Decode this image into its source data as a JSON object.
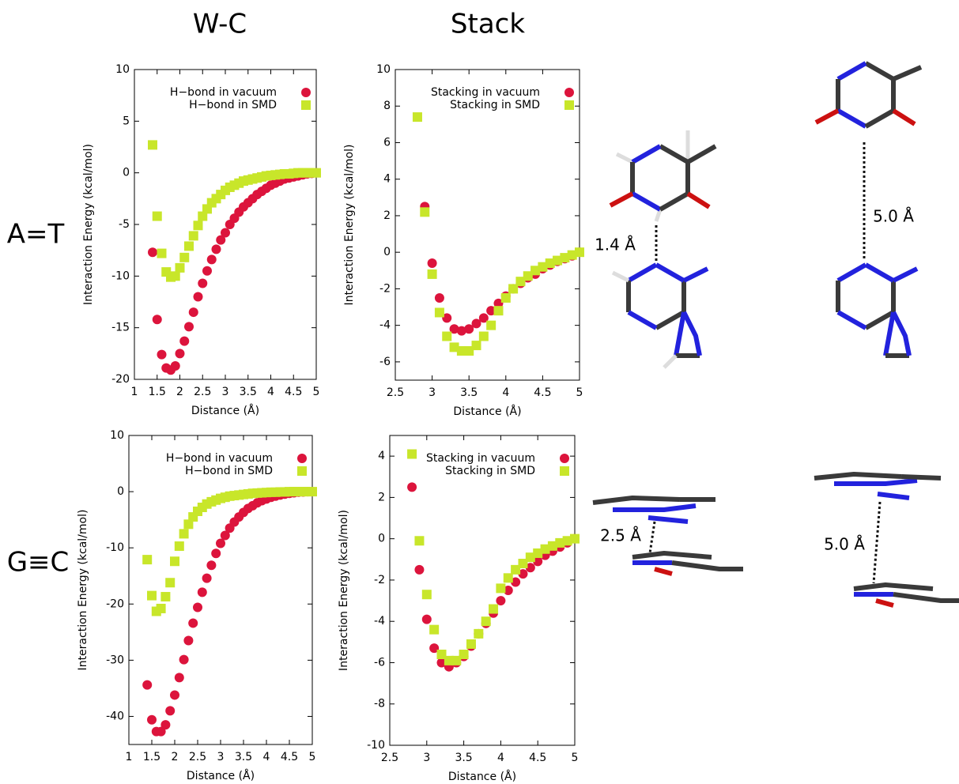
{
  "headers": [
    "W-C",
    "Stack"
  ],
  "row_labels": [
    "A=T",
    "G≡C"
  ],
  "annotations": [
    "1.4 Å",
    "5.0 Å",
    "2.5 Å",
    "5.0 Å"
  ],
  "chart_data": [
    {
      "type": "scatter",
      "x_label": "Distance (Å)",
      "y_label": "Interaction Energy (kcal/mol)",
      "x": [
        1.4,
        1.5,
        1.6,
        1.7,
        1.8,
        1.9,
        2.0,
        2.1,
        2.2,
        2.3,
        2.4,
        2.5,
        2.6,
        2.7,
        2.8,
        2.9,
        3.0,
        3.1,
        3.2,
        3.3,
        3.4,
        3.5,
        3.6,
        3.7,
        3.8,
        3.9,
        4.0,
        4.1,
        4.2,
        4.3,
        4.4,
        4.5,
        4.6,
        4.7,
        4.8,
        4.9,
        5.0
      ],
      "series": [
        {
          "name": "H−bond in vacuum",
          "color": "#dc143c",
          "marker": "circle",
          "values": [
            -7.7,
            -14.2,
            -17.6,
            -18.9,
            -19.1,
            -18.7,
            -17.5,
            -16.3,
            -14.9,
            -13.5,
            -12.0,
            -10.7,
            -9.5,
            -8.4,
            -7.4,
            -6.5,
            -5.8,
            -5.0,
            -4.4,
            -3.8,
            -3.3,
            -2.9,
            -2.5,
            -2.1,
            -1.8,
            -1.5,
            -1.2,
            -1.0,
            -0.8,
            -0.6,
            -0.5,
            -0.4,
            -0.3,
            -0.2,
            -0.1,
            -0.05,
            0
          ]
        },
        {
          "name": "H−bond in SMD",
          "color": "#c8e62a",
          "marker": "square",
          "values": [
            2.7,
            -4.2,
            -7.8,
            -9.6,
            -10.1,
            -10.0,
            -9.2,
            -8.2,
            -7.1,
            -6.1,
            -5.1,
            -4.2,
            -3.5,
            -2.9,
            -2.5,
            -2.1,
            -1.7,
            -1.4,
            -1.2,
            -1.0,
            -0.8,
            -0.7,
            -0.6,
            -0.5,
            -0.4,
            -0.3,
            -0.25,
            -0.2,
            -0.15,
            -0.1,
            -0.1,
            -0.05,
            0,
            0,
            0,
            0,
            0
          ]
        }
      ],
      "xlim": [
        1,
        5
      ],
      "xticks": [
        1,
        1.5,
        2,
        2.5,
        3,
        3.5,
        4,
        4.5,
        5
      ],
      "ylim": [
        -20,
        10
      ],
      "yticks": [
        -20,
        -15,
        -10,
        -5,
        0,
        5,
        10
      ],
      "legend": "upper right"
    },
    {
      "type": "scatter",
      "x_label": "Distance (Å)",
      "y_label": "Interaction Energy (kcal/mol)",
      "x": [
        2.8,
        2.9,
        3.0,
        3.1,
        3.2,
        3.3,
        3.4,
        3.5,
        3.6,
        3.7,
        3.8,
        3.9,
        4.0,
        4.1,
        4.2,
        4.3,
        4.4,
        4.5,
        4.6,
        4.7,
        4.8,
        4.9,
        5.0
      ],
      "series": [
        {
          "name": "Stacking in vacuum",
          "color": "#dc143c",
          "marker": "circle",
          "values": [
            null,
            2.5,
            -0.6,
            -2.5,
            -3.6,
            -4.2,
            -4.3,
            -4.2,
            -3.9,
            -3.6,
            -3.2,
            -2.8,
            -2.4,
            -2.0,
            -1.7,
            -1.4,
            -1.2,
            -0.9,
            -0.7,
            -0.5,
            -0.35,
            -0.2,
            0
          ]
        },
        {
          "name": "Stacking in SMD",
          "color": "#c8e62a",
          "marker": "square",
          "values": [
            7.4,
            2.2,
            -1.2,
            -3.3,
            -4.6,
            -5.2,
            -5.4,
            -5.4,
            -5.1,
            -4.6,
            -4.0,
            -3.2,
            -2.5,
            -2.0,
            -1.6,
            -1.3,
            -1.0,
            -0.8,
            -0.6,
            -0.45,
            -0.3,
            -0.15,
            0
          ]
        }
      ],
      "xlim": [
        2.5,
        5
      ],
      "xticks": [
        2.5,
        3,
        3.5,
        4,
        4.5,
        5
      ],
      "ylim": [
        -7,
        10
      ],
      "yticks": [
        -6,
        -4,
        -2,
        0,
        2,
        4,
        6,
        8,
        10
      ],
      "legend": "upper right"
    },
    {
      "type": "scatter",
      "x_label": "Distance (Å)",
      "y_label": "Interaction Energy (kcal/mol)",
      "x": [
        1.4,
        1.5,
        1.6,
        1.7,
        1.8,
        1.9,
        2.0,
        2.1,
        2.2,
        2.3,
        2.4,
        2.5,
        2.6,
        2.7,
        2.8,
        2.9,
        3.0,
        3.1,
        3.2,
        3.3,
        3.4,
        3.5,
        3.6,
        3.7,
        3.8,
        3.9,
        4.0,
        4.1,
        4.2,
        4.3,
        4.4,
        4.5,
        4.6,
        4.7,
        4.8,
        4.9,
        5.0
      ],
      "series": [
        {
          "name": "H−bond in vacuum",
          "color": "#dc143c",
          "marker": "circle",
          "values": [
            -34.4,
            -40.6,
            -42.7,
            -42.7,
            -41.5,
            -39.0,
            -36.2,
            -33.1,
            -29.9,
            -26.5,
            -23.4,
            -20.6,
            -17.9,
            -15.4,
            -13.1,
            -11.0,
            -9.2,
            -7.8,
            -6.5,
            -5.4,
            -4.5,
            -3.7,
            -3.0,
            -2.5,
            -2.0,
            -1.6,
            -1.3,
            -1.0,
            -0.8,
            -0.6,
            -0.45,
            -0.3,
            -0.2,
            -0.1,
            -0.05,
            0,
            0
          ]
        },
        {
          "name": "H−bond in SMD",
          "color": "#c8e62a",
          "marker": "square",
          "values": [
            -12.1,
            -18.5,
            -21.3,
            -20.8,
            -18.7,
            -16.2,
            -12.4,
            -9.7,
            -7.5,
            -5.8,
            -4.5,
            -3.5,
            -2.8,
            -2.2,
            -1.8,
            -1.5,
            -1.2,
            -1.0,
            -0.8,
            -0.7,
            -0.6,
            -0.5,
            -0.4,
            -0.3,
            -0.25,
            -0.2,
            -0.15,
            -0.1,
            -0.1,
            -0.05,
            -0.05,
            0,
            0,
            0,
            0,
            0,
            0
          ]
        }
      ],
      "xlim": [
        1,
        5
      ],
      "xticks": [
        1,
        1.5,
        2,
        2.5,
        3,
        3.5,
        4,
        4.5,
        5
      ],
      "ylim": [
        -45,
        10
      ],
      "yticks": [
        -40,
        -30,
        -20,
        -10,
        0,
        10
      ],
      "legend": "upper right"
    },
    {
      "type": "scatter",
      "x_label": "Distance (Å)",
      "y_label": "Interaction Energy (kcal/mol)",
      "x": [
        2.8,
        2.9,
        3.0,
        3.1,
        3.2,
        3.3,
        3.4,
        3.5,
        3.6,
        3.7,
        3.8,
        3.9,
        4.0,
        4.1,
        4.2,
        4.3,
        4.4,
        4.5,
        4.6,
        4.7,
        4.8,
        4.9,
        5.0
      ],
      "series": [
        {
          "name": "Stacking in vacuum",
          "color": "#dc143c",
          "marker": "circle",
          "values": [
            2.5,
            -1.5,
            -3.9,
            -5.3,
            -6.0,
            -6.2,
            -6.0,
            -5.7,
            -5.2,
            -4.6,
            -4.1,
            -3.6,
            -3.0,
            -2.5,
            -2.1,
            -1.7,
            -1.4,
            -1.1,
            -0.8,
            -0.6,
            -0.4,
            -0.2,
            0
          ]
        },
        {
          "name": "Stacking in SMD",
          "color": "#c8e62a",
          "marker": "square",
          "values": [
            4.1,
            -0.1,
            -2.7,
            -4.4,
            -5.6,
            -5.9,
            -5.9,
            -5.6,
            -5.1,
            -4.6,
            -4.0,
            -3.4,
            -2.4,
            -1.9,
            -1.5,
            -1.2,
            -0.9,
            -0.7,
            -0.5,
            -0.35,
            -0.2,
            -0.1,
            0
          ]
        }
      ],
      "xlim": [
        2.5,
        5
      ],
      "xticks": [
        2.5,
        3,
        3.5,
        4,
        4.5,
        5
      ],
      "ylim": [
        -10,
        5
      ],
      "yticks": [
        -10,
        -8,
        -6,
        -4,
        -2,
        0,
        2,
        4
      ],
      "legend": "upper right"
    }
  ]
}
